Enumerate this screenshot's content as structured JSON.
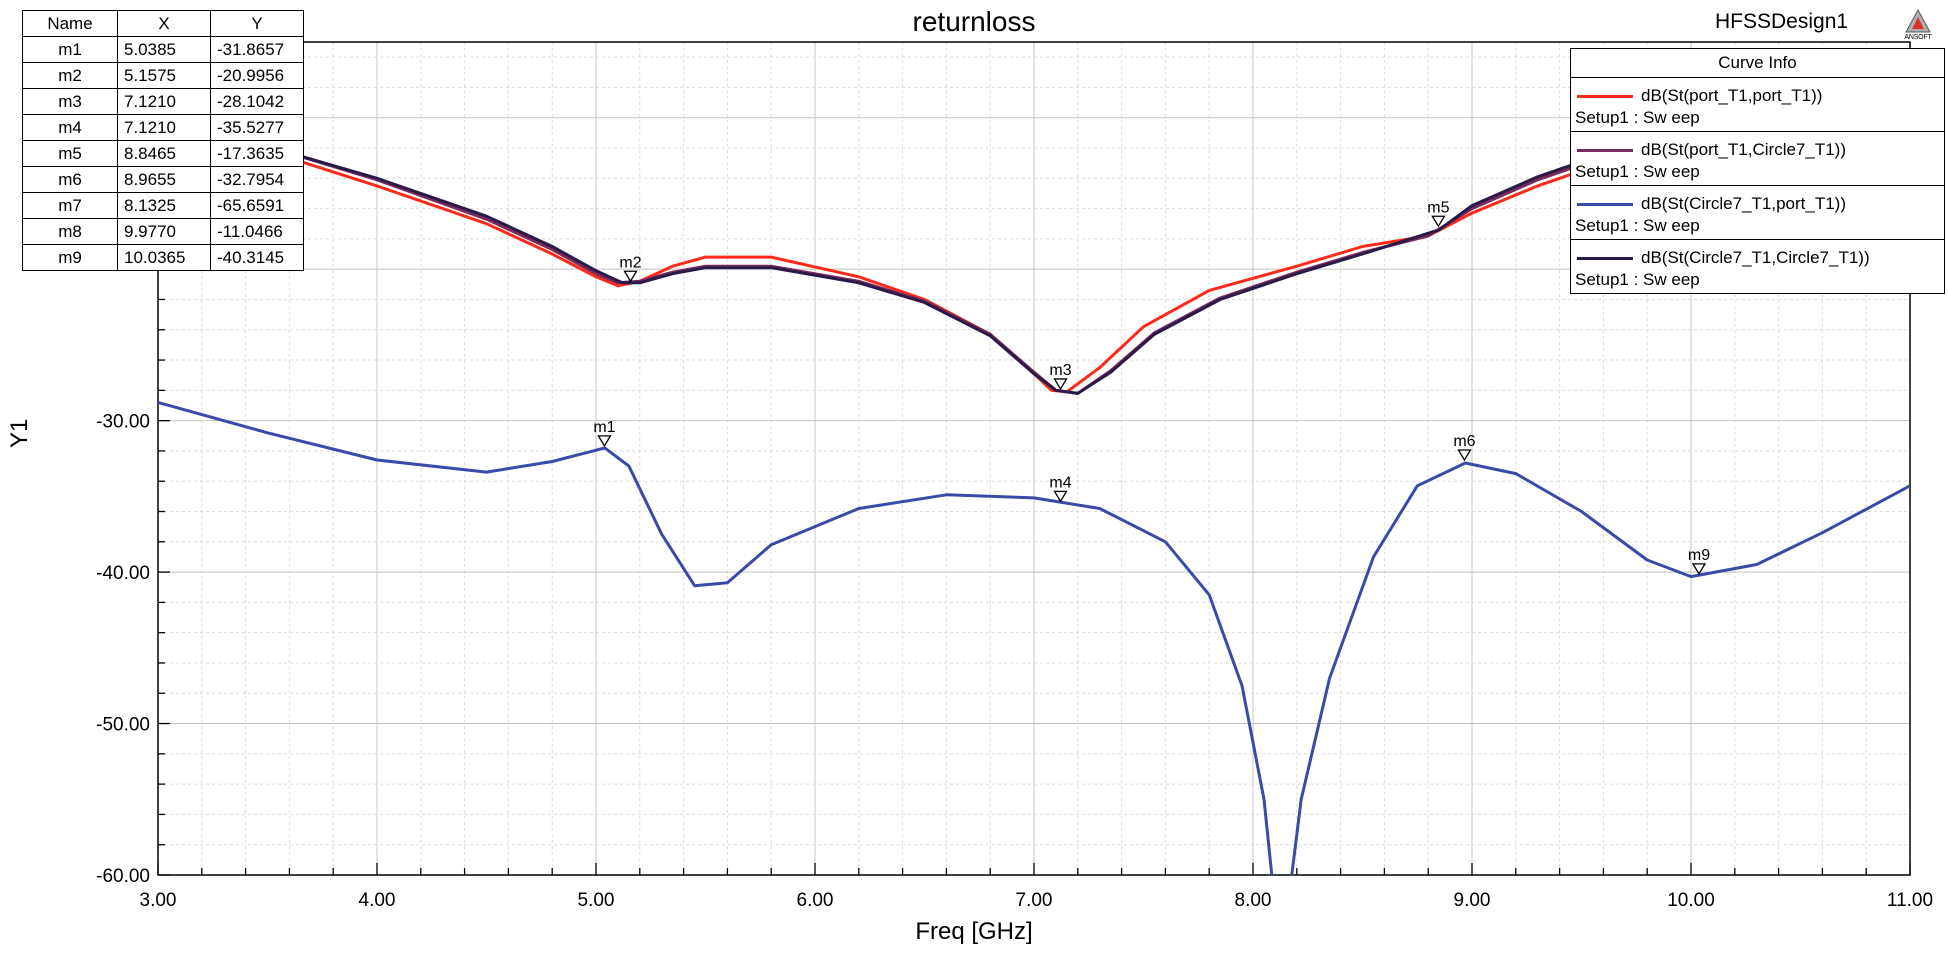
{
  "header": {
    "title": "returnloss",
    "design": "HFSSDesign1",
    "logo_text": "ANSOFT"
  },
  "legend": {
    "title": "Curve Info",
    "items": [
      {
        "name": "dB(St(port_T1,port_T1))",
        "setup": "Setup1 : Sw eep",
        "color": "#ff2a1a"
      },
      {
        "name": "dB(St(port_T1,Circle7_T1))",
        "setup": "Setup1 : Sw eep",
        "color": "#7a2a5a"
      },
      {
        "name": "dB(St(Circle7_T1,port_T1))",
        "setup": "Setup1 : Sw eep",
        "color": "#3a4aa8"
      },
      {
        "name": "dB(St(Circle7_T1,Circle7_T1))",
        "setup": "Setup1 : Sw eep",
        "color": "#2a1a4a"
      }
    ]
  },
  "marker_table": {
    "headers": [
      "Name",
      "X",
      "Y"
    ],
    "rows": [
      [
        "m1",
        "5.0385",
        "-31.8657"
      ],
      [
        "m2",
        "5.1575",
        "-20.9956"
      ],
      [
        "m3",
        "7.1210",
        "-28.1042"
      ],
      [
        "m4",
        "7.1210",
        "-35.5277"
      ],
      [
        "m5",
        "8.8465",
        "-17.3635"
      ],
      [
        "m6",
        "8.9655",
        "-32.7954"
      ],
      [
        "m7",
        "8.1325",
        "-65.6591"
      ],
      [
        "m8",
        "9.9770",
        "-11.0466"
      ],
      [
        "m9",
        "10.0365",
        "-40.3145"
      ]
    ]
  },
  "chart_data": {
    "type": "line",
    "title": "returnloss",
    "xlabel": "Freq [GHz]",
    "ylabel": "Y1",
    "xlim": [
      3.0,
      11.0
    ],
    "ylim": [
      -60.0,
      -5.0
    ],
    "x_ticks": [
      "3.00",
      "4.00",
      "5.00",
      "6.00",
      "7.00",
      "8.00",
      "9.00",
      "10.00",
      "11.00"
    ],
    "y_ticks": [
      "-30.00",
      "-40.00",
      "-50.00",
      "-60.00"
    ],
    "y_tick_values": [
      -30,
      -40,
      -50,
      -60
    ],
    "grid": true,
    "legend_position": "top-right",
    "series": [
      {
        "name": "dB(St(port_T1,port_T1))",
        "color": "#ff2a1a",
        "points": [
          [
            3.0,
            -10.4
          ],
          [
            3.5,
            -12.2
          ],
          [
            4.0,
            -14.5
          ],
          [
            4.5,
            -17.0
          ],
          [
            4.8,
            -19.0
          ],
          [
            5.0,
            -20.5
          ],
          [
            5.1,
            -21.1
          ],
          [
            5.2,
            -20.8
          ],
          [
            5.35,
            -19.8
          ],
          [
            5.5,
            -19.2
          ],
          [
            5.8,
            -19.2
          ],
          [
            6.2,
            -20.5
          ],
          [
            6.5,
            -22.0
          ],
          [
            6.8,
            -24.3
          ],
          [
            7.0,
            -26.9
          ],
          [
            7.08,
            -28.0
          ],
          [
            7.15,
            -28.1
          ],
          [
            7.3,
            -26.5
          ],
          [
            7.5,
            -23.8
          ],
          [
            7.8,
            -21.4
          ],
          [
            8.2,
            -19.8
          ],
          [
            8.5,
            -18.5
          ],
          [
            8.8,
            -17.8
          ],
          [
            9.0,
            -16.3
          ],
          [
            9.3,
            -14.5
          ],
          [
            9.7,
            -12.5
          ],
          [
            10.0,
            -11.0
          ]
        ]
      },
      {
        "name": "dB(St(port_T1,Circle7_T1))",
        "color": "#7a2a5a",
        "points": [
          [
            3.0,
            -10.4
          ],
          [
            3.5,
            -11.9
          ],
          [
            4.0,
            -14.1
          ],
          [
            4.5,
            -16.7
          ],
          [
            4.8,
            -18.7
          ],
          [
            5.0,
            -20.3
          ],
          [
            5.1,
            -20.9
          ],
          [
            5.2,
            -20.8
          ],
          [
            5.35,
            -20.2
          ],
          [
            5.5,
            -19.8
          ],
          [
            5.8,
            -19.8
          ],
          [
            6.2,
            -20.8
          ],
          [
            6.5,
            -22.1
          ],
          [
            6.8,
            -24.3
          ],
          [
            7.0,
            -26.8
          ],
          [
            7.1,
            -28.0
          ],
          [
            7.2,
            -28.2
          ],
          [
            7.35,
            -26.7
          ],
          [
            7.55,
            -24.2
          ],
          [
            7.85,
            -21.9
          ],
          [
            8.2,
            -20.2
          ],
          [
            8.5,
            -18.9
          ],
          [
            8.8,
            -17.8
          ],
          [
            9.0,
            -16.0
          ],
          [
            9.3,
            -14.1
          ],
          [
            9.7,
            -12.1
          ],
          [
            10.0,
            -11.0
          ]
        ]
      },
      {
        "name": "dB(St(Circle7_T1,port_T1))",
        "color": "#3a4aa8",
        "points": [
          [
            3.0,
            -28.8
          ],
          [
            3.5,
            -30.8
          ],
          [
            4.0,
            -32.6
          ],
          [
            4.5,
            -33.4
          ],
          [
            4.8,
            -32.7
          ],
          [
            5.04,
            -31.8
          ],
          [
            5.15,
            -33.0
          ],
          [
            5.3,
            -37.5
          ],
          [
            5.45,
            -40.9
          ],
          [
            5.6,
            -40.7
          ],
          [
            5.8,
            -38.2
          ],
          [
            6.2,
            -35.8
          ],
          [
            6.6,
            -34.9
          ],
          [
            7.0,
            -35.1
          ],
          [
            7.3,
            -35.8
          ],
          [
            7.6,
            -38.0
          ],
          [
            7.8,
            -41.5
          ],
          [
            7.95,
            -47.5
          ],
          [
            8.05,
            -55.0
          ],
          [
            8.1,
            -62.0
          ],
          [
            8.13,
            -65.66
          ],
          [
            8.16,
            -62.0
          ],
          [
            8.22,
            -55.0
          ],
          [
            8.35,
            -47.0
          ],
          [
            8.55,
            -39.0
          ],
          [
            8.75,
            -34.3
          ],
          [
            8.97,
            -32.8
          ],
          [
            9.2,
            -33.5
          ],
          [
            9.5,
            -36.0
          ],
          [
            9.8,
            -39.2
          ],
          [
            10.0,
            -40.3
          ],
          [
            10.3,
            -39.5
          ],
          [
            10.6,
            -37.4
          ],
          [
            11.0,
            -34.3
          ]
        ]
      },
      {
        "name": "dB(St(Circle7_T1,Circle7_T1))",
        "color": "#2a1a4a",
        "points": [
          [
            3.0,
            -10.3
          ],
          [
            3.5,
            -11.9
          ],
          [
            4.0,
            -14.0
          ],
          [
            4.5,
            -16.5
          ],
          [
            4.8,
            -18.5
          ],
          [
            5.0,
            -20.1
          ],
          [
            5.12,
            -20.9
          ],
          [
            5.2,
            -20.9
          ],
          [
            5.35,
            -20.3
          ],
          [
            5.5,
            -19.9
          ],
          [
            5.8,
            -19.9
          ],
          [
            6.2,
            -20.9
          ],
          [
            6.5,
            -22.2
          ],
          [
            6.8,
            -24.4
          ],
          [
            7.0,
            -26.9
          ],
          [
            7.1,
            -28.0
          ],
          [
            7.2,
            -28.2
          ],
          [
            7.35,
            -26.8
          ],
          [
            7.55,
            -24.3
          ],
          [
            7.85,
            -22.0
          ],
          [
            8.2,
            -20.3
          ],
          [
            8.5,
            -19.0
          ],
          [
            8.85,
            -17.4
          ],
          [
            9.0,
            -15.8
          ],
          [
            9.3,
            -13.9
          ],
          [
            9.7,
            -11.9
          ],
          [
            10.0,
            -10.9
          ]
        ]
      }
    ],
    "markers": [
      {
        "label": "m1",
        "x": 5.0385,
        "y": -31.8657
      },
      {
        "label": "m2",
        "x": 5.1575,
        "y": -20.9956
      },
      {
        "label": "m3",
        "x": 7.121,
        "y": -28.1042
      },
      {
        "label": "m4",
        "x": 7.121,
        "y": -35.5277
      },
      {
        "label": "m5",
        "x": 8.8465,
        "y": -17.3635
      },
      {
        "label": "m6",
        "x": 8.9655,
        "y": -32.7954
      },
      {
        "label": "m9",
        "x": 10.0365,
        "y": -40.3145
      }
    ]
  }
}
